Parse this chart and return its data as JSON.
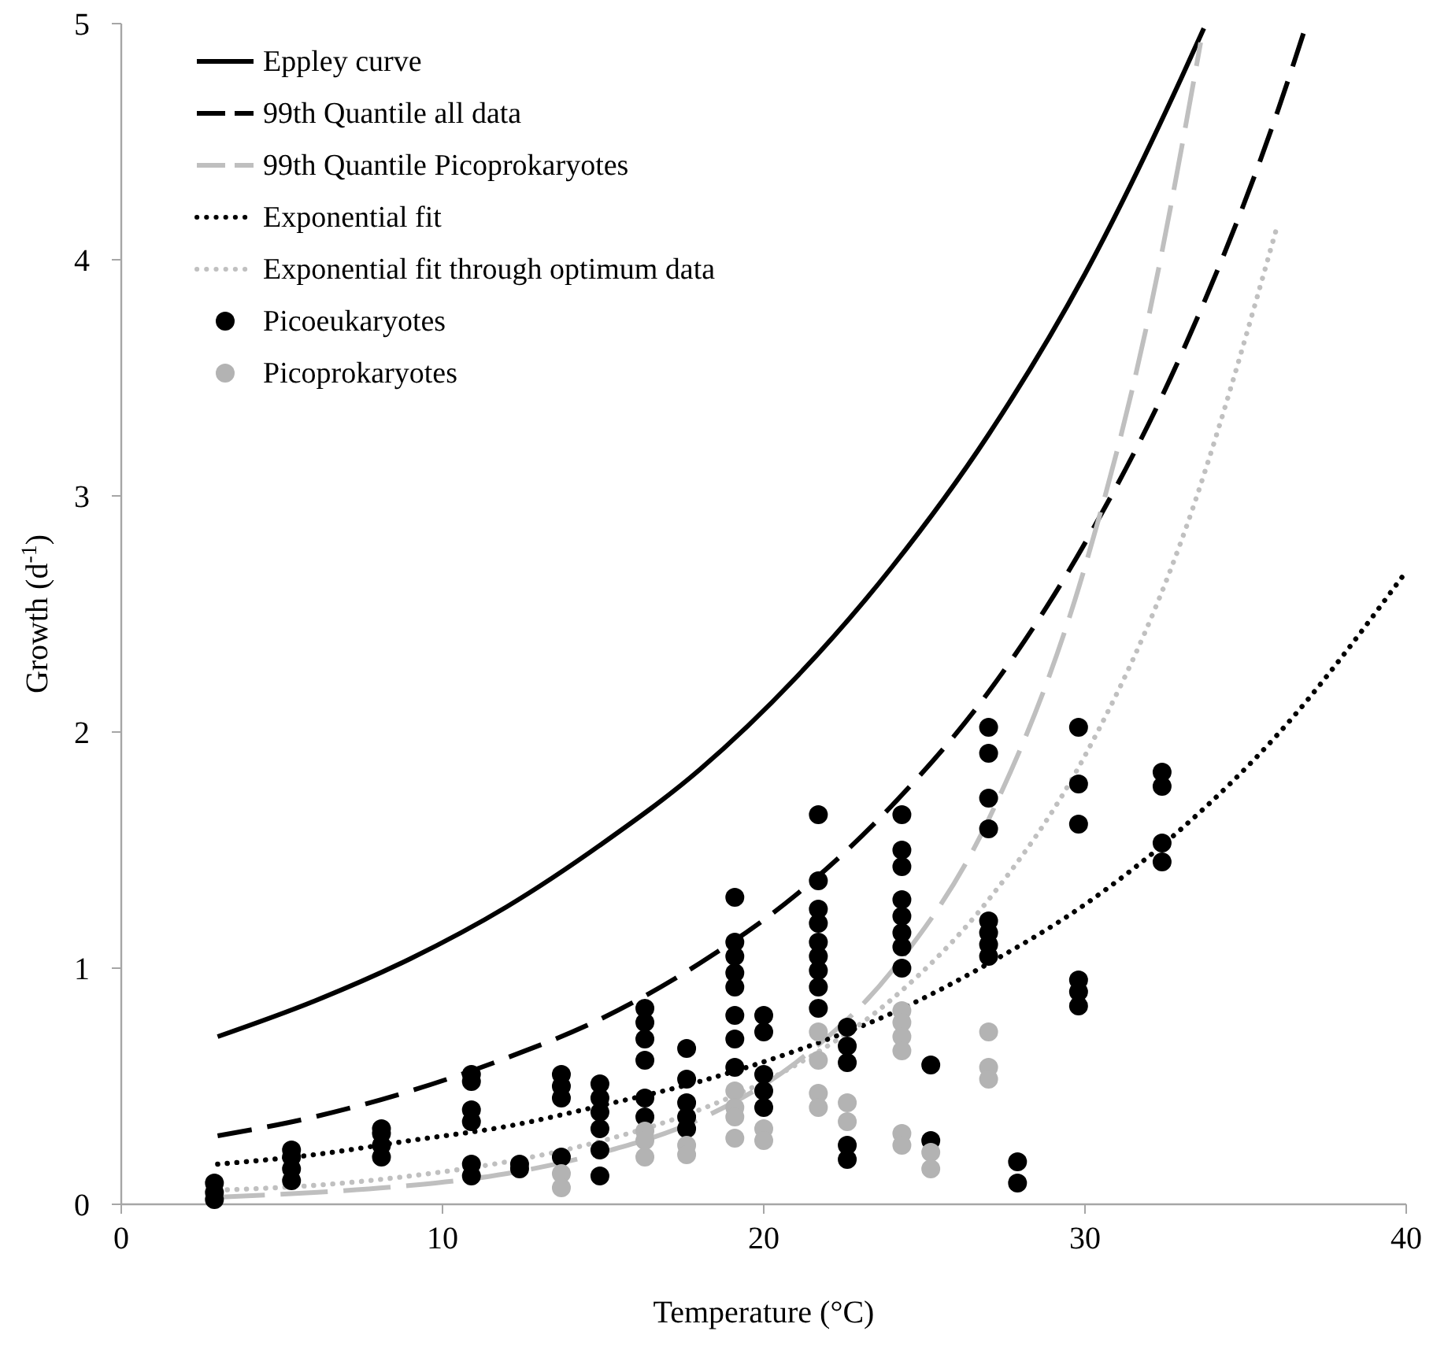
{
  "chart_data": {
    "type": "line",
    "xlabel": "Temperature (°C)",
    "ylabel": "Growth  (d$^{-1}$)",
    "xlim": [
      0,
      40
    ],
    "ylim": [
      0,
      5
    ],
    "xticks": [
      0,
      10,
      20,
      30,
      40
    ],
    "yticks": [
      0,
      1,
      2,
      3,
      4,
      5
    ],
    "grid": false,
    "legend": "top left",
    "series": [
      {
        "name": "Eppley curve",
        "line_style": "solid",
        "color": "#000000",
        "x": [
          3,
          6,
          9,
          12,
          15,
          18,
          21,
          24,
          27,
          30,
          33,
          33.7
        ],
        "values": [
          0.71,
          0.86,
          1.04,
          1.26,
          1.53,
          1.84,
          2.23,
          2.7,
          3.26,
          3.94,
          4.77,
          4.98
        ]
      },
      {
        "name": "99th Quantile all data",
        "line_style": "dashed",
        "color": "#000000",
        "x": [
          3,
          6,
          9,
          12,
          15,
          18,
          21,
          24,
          27,
          30,
          33,
          36,
          36.9
        ],
        "values": [
          0.29,
          0.37,
          0.48,
          0.62,
          0.79,
          1.02,
          1.31,
          1.69,
          2.17,
          2.8,
          3.6,
          4.63,
          5.0
        ]
      },
      {
        "name": "99th Quantile Picoprokaryotes",
        "line_style": "dashed",
        "color": "#bfbfbf",
        "x": [
          3,
          6,
          9,
          12,
          15,
          18,
          21,
          24,
          27,
          30,
          32,
          33.6
        ],
        "values": [
          0.03,
          0.05,
          0.08,
          0.13,
          0.22,
          0.36,
          0.6,
          0.99,
          1.63,
          2.7,
          3.77,
          4.92
        ]
      },
      {
        "name": "Exponential fit",
        "line_style": "dotted",
        "color": "#000000",
        "x": [
          3,
          6,
          9,
          12,
          15,
          18,
          21,
          24,
          27,
          30,
          33,
          36,
          40
        ],
        "values": [
          0.17,
          0.21,
          0.27,
          0.33,
          0.42,
          0.52,
          0.65,
          0.81,
          1.02,
          1.27,
          1.59,
          1.99,
          2.68
        ]
      },
      {
        "name": "Exponential fit through optimum data",
        "line_style": "dotted",
        "color": "#c0c0c0",
        "x": [
          3,
          6,
          9,
          12,
          15,
          18,
          21,
          24,
          27,
          30,
          33,
          36
        ],
        "values": [
          0.06,
          0.08,
          0.12,
          0.18,
          0.27,
          0.4,
          0.59,
          0.87,
          1.29,
          1.9,
          2.81,
          4.15
        ]
      },
      {
        "name": "Picoeukaryotes",
        "type": "scatter",
        "marker": "circle",
        "color": "#000000",
        "x": [
          2.9,
          2.9,
          2.9,
          5.3,
          5.3,
          5.3,
          5.3,
          8.1,
          8.1,
          8.1,
          8.1,
          10.9,
          10.9,
          10.9,
          10.9,
          10.9,
          10.9,
          12.4,
          12.4,
          13.7,
          13.7,
          13.7,
          13.7,
          14.9,
          14.9,
          14.9,
          14.9,
          14.9,
          14.9,
          16.3,
          16.3,
          16.3,
          16.3,
          16.3,
          16.3,
          17.6,
          17.6,
          17.6,
          17.6,
          17.6,
          19.1,
          19.1,
          19.1,
          19.1,
          19.1,
          19.1,
          19.1,
          19.1,
          20,
          20,
          20,
          20,
          20,
          21.7,
          21.7,
          21.7,
          21.7,
          21.7,
          21.7,
          21.7,
          21.7,
          21.7,
          22.6,
          22.6,
          22.6,
          22.6,
          22.6,
          24.3,
          24.3,
          24.3,
          24.3,
          24.3,
          24.3,
          24.3,
          24.3,
          25.2,
          25.2,
          27,
          27,
          27,
          27,
          27,
          27,
          27,
          27,
          27.9,
          27.9,
          29.8,
          29.8,
          29.8,
          29.8,
          29.8,
          29.8,
          32.4,
          32.4,
          32.4,
          32.4
        ],
        "values": [
          0.02,
          0.05,
          0.09,
          0.1,
          0.15,
          0.2,
          0.23,
          0.2,
          0.25,
          0.3,
          0.32,
          0.55,
          0.52,
          0.4,
          0.35,
          0.17,
          0.12,
          0.15,
          0.17,
          0.55,
          0.5,
          0.45,
          0.2,
          0.51,
          0.45,
          0.39,
          0.32,
          0.23,
          0.12,
          0.83,
          0.77,
          0.7,
          0.61,
          0.45,
          0.37,
          0.66,
          0.53,
          0.43,
          0.37,
          0.32,
          1.3,
          1.11,
          1.05,
          0.98,
          0.92,
          0.8,
          0.7,
          0.58,
          0.8,
          0.73,
          0.55,
          0.48,
          0.41,
          1.65,
          1.37,
          1.25,
          1.19,
          1.11,
          1.05,
          0.99,
          0.92,
          0.83,
          0.75,
          0.67,
          0.6,
          0.25,
          0.19,
          1.65,
          1.5,
          1.43,
          1.29,
          1.22,
          1.15,
          1.09,
          1.0,
          0.59,
          0.27,
          2.02,
          1.91,
          1.72,
          1.59,
          1.2,
          1.15,
          1.1,
          1.05,
          0.18,
          0.09,
          2.02,
          1.78,
          1.61,
          0.95,
          0.9,
          0.84,
          1.83,
          1.77,
          1.53,
          1.45
        ]
      },
      {
        "name": "Picoprokaryotes",
        "type": "scatter",
        "marker": "circle",
        "color": "#b3b3b3",
        "x": [
          13.7,
          13.7,
          16.3,
          16.3,
          16.3,
          17.6,
          17.6,
          19.1,
          19.1,
          19.1,
          19.1,
          20,
          20,
          21.7,
          21.7,
          21.7,
          21.7,
          22.6,
          22.6,
          24.3,
          24.3,
          24.3,
          24.3,
          24.3,
          24.3,
          25.2,
          25.2,
          27,
          27,
          27
        ],
        "values": [
          0.13,
          0.07,
          0.31,
          0.27,
          0.2,
          0.25,
          0.21,
          0.48,
          0.41,
          0.37,
          0.28,
          0.32,
          0.27,
          0.73,
          0.61,
          0.47,
          0.41,
          0.43,
          0.35,
          0.82,
          0.77,
          0.71,
          0.65,
          0.3,
          0.25,
          0.22,
          0.15,
          0.73,
          0.58,
          0.53
        ]
      }
    ]
  }
}
